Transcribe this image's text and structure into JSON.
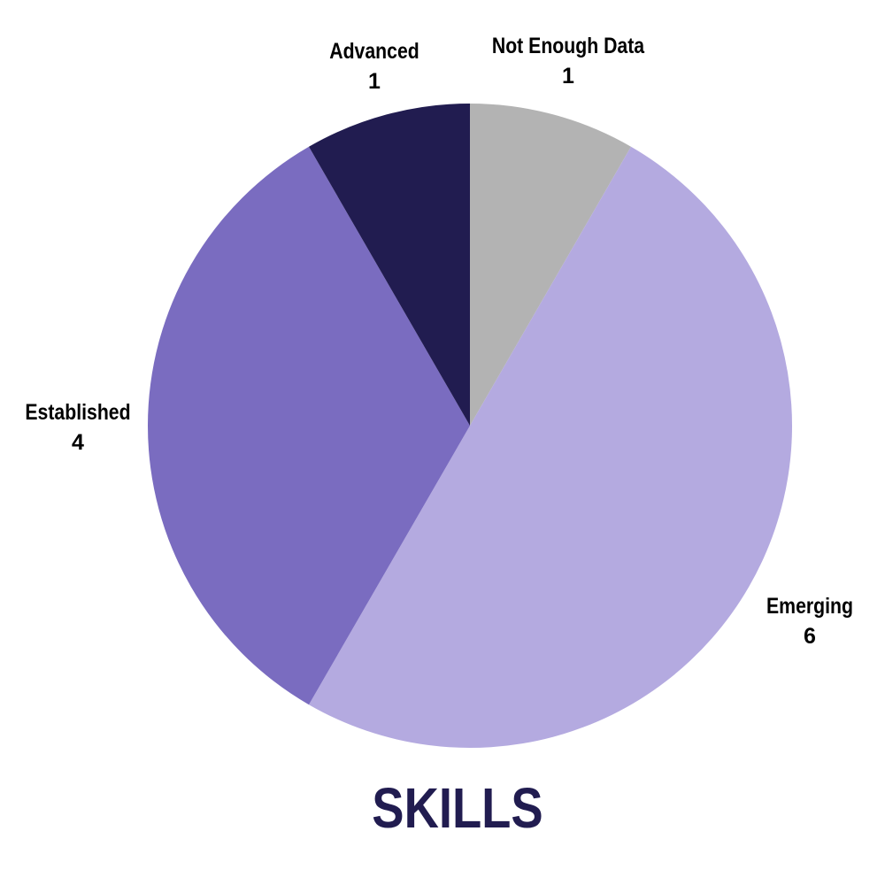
{
  "chart_data": {
    "type": "pie",
    "title": "SKILLS",
    "categories": [
      "Not Enough Data",
      "Emerging",
      "Established",
      "Advanced"
    ],
    "values": [
      1,
      6,
      4,
      1
    ],
    "colors": [
      "#b3b3b3",
      "#b4aae0",
      "#7a6cc0",
      "#211c50"
    ],
    "start_angle": "12 o'clock",
    "direction": "clockwise",
    "labels": [
      {
        "name": "Not Enough Data",
        "value": "1"
      },
      {
        "name": "Emerging",
        "value": "6"
      },
      {
        "name": "Established",
        "value": "4"
      },
      {
        "name": "Advanced",
        "value": "1"
      }
    ]
  }
}
